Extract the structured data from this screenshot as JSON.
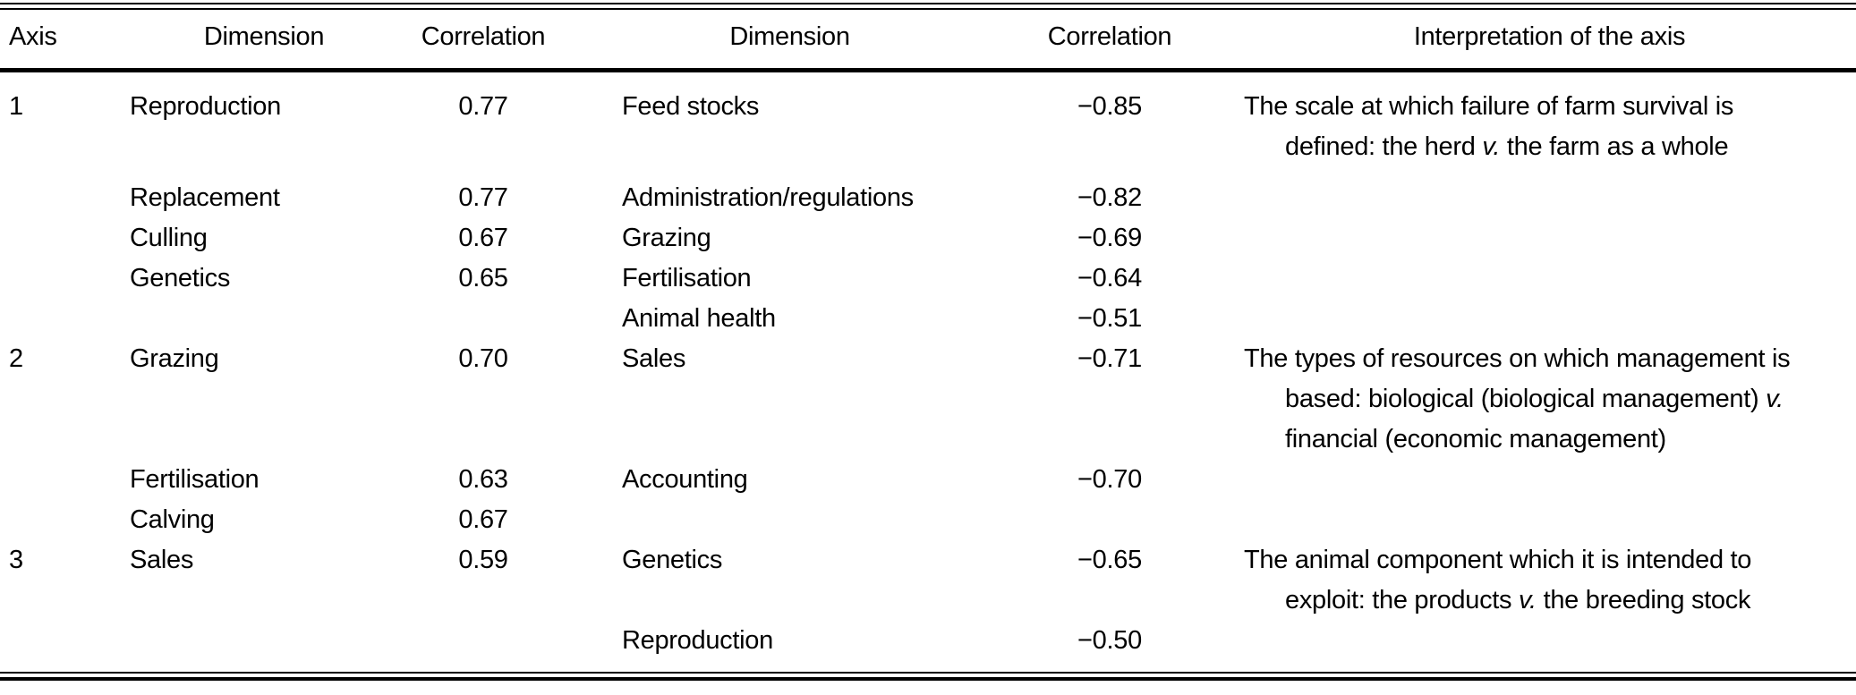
{
  "table": {
    "headers": {
      "axis": "Axis",
      "dimension1": "Dimension",
      "correlation1": "Correlation",
      "dimension2": "Dimension",
      "correlation2": "Correlation",
      "interpretation": "Interpretation of the axis"
    },
    "rows": [
      {
        "axis": "1",
        "dim1": "Reproduction",
        "corr1": "0.77",
        "dim2": "Feed stocks",
        "corr2": "−0.85",
        "interp": "The scale at which failure of farm survival is\ndefined: the herd *v.* the farm as a whole"
      },
      {
        "axis": "",
        "dim1": "Replacement",
        "corr1": "0.77",
        "dim2": "Administration/regulations",
        "corr2": "−0.82",
        "interp": ""
      },
      {
        "axis": "",
        "dim1": "Culling",
        "corr1": "0.67",
        "dim2": "Grazing",
        "corr2": "−0.69",
        "interp": ""
      },
      {
        "axis": "",
        "dim1": "Genetics",
        "corr1": "0.65",
        "dim2": "Fertilisation",
        "corr2": "−0.64",
        "interp": ""
      },
      {
        "axis": "",
        "dim1": "",
        "corr1": "",
        "dim2": "Animal health",
        "corr2": "−0.51",
        "interp": ""
      },
      {
        "axis": "2",
        "dim1": "Grazing",
        "corr1": "0.70",
        "dim2": "Sales",
        "corr2": "−0.71",
        "interp": "The types of resources on which management is\nbased: biological (biological management) *v.*\nfinancial (economic management)"
      },
      {
        "axis": "",
        "dim1": "Fertilisation",
        "corr1": "0.63",
        "dim2": "Accounting",
        "corr2": "−0.70",
        "interp": ""
      },
      {
        "axis": "",
        "dim1": "Calving",
        "corr1": "0.67",
        "dim2": "",
        "corr2": "",
        "interp": ""
      },
      {
        "axis": "3",
        "dim1": "Sales",
        "corr1": "0.59",
        "dim2": "Genetics",
        "corr2": "−0.65",
        "interp": "The animal component which it is intended to\nexploit: the products *v.* the breeding stock"
      },
      {
        "axis": "",
        "dim1": "",
        "corr1": "",
        "dim2": "Reproduction",
        "corr2": "−0.50",
        "interp": ""
      }
    ]
  }
}
